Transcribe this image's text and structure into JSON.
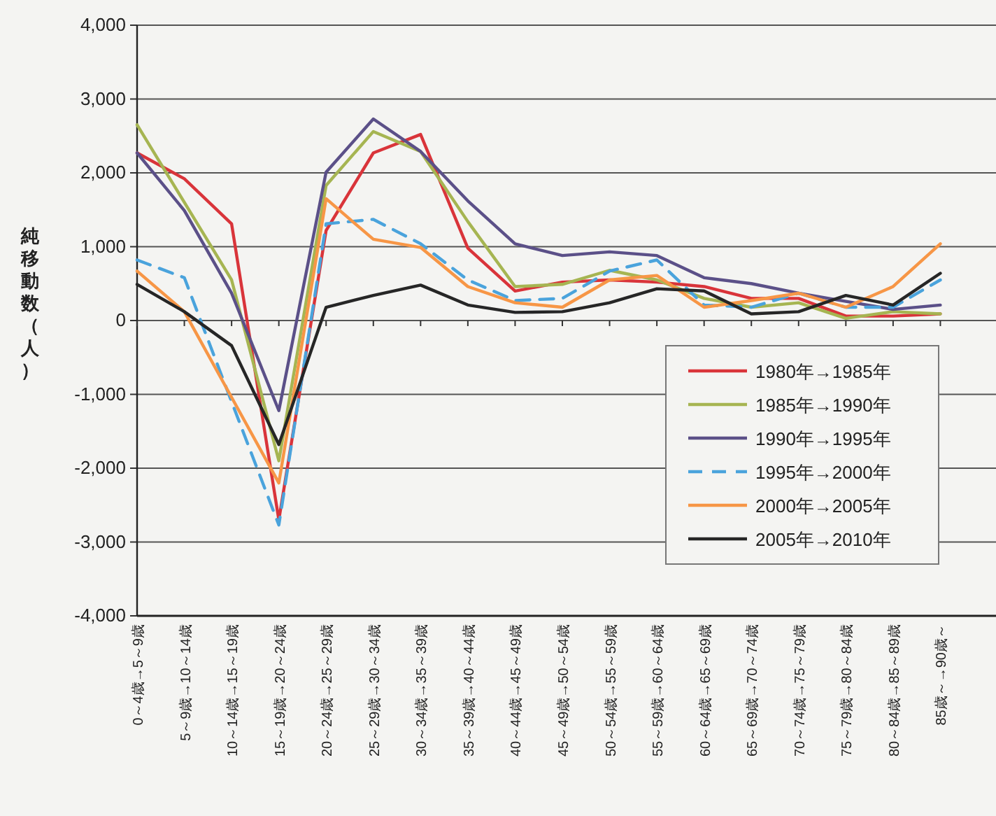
{
  "chart_data": {
    "type": "line",
    "ylabel": "純移動数（人）",
    "categories": [
      "0～4歳→5～9歳",
      "5～9歳→10～14歳",
      "10～14歳→15～19歳",
      "15～19歳→20～24歳",
      "20～24歳→25～29歳",
      "25～29歳→30～34歳",
      "30～34歳→35～39歳",
      "35～39歳→40～44歳",
      "40～44歳→45～49歳",
      "45～49歳→50～54歳",
      "50～54歳→55～59歳",
      "55～59歳→60～64歳",
      "60～64歳→65～69歳",
      "65～69歳→70～74歳",
      "70～74歳→75～79歳",
      "75～79歳→80～84歳",
      "80～84歳→85～89歳",
      "85歳～→90歳～"
    ],
    "series": [
      {
        "name": "1980年→1985年",
        "color": "#d9343a",
        "line_style": "solid",
        "values": [
          2270,
          1920,
          1310,
          -2700,
          1220,
          2270,
          2520,
          980,
          400,
          520,
          550,
          520,
          460,
          300,
          300,
          60,
          60,
          90
        ]
      },
      {
        "name": "1985年→1990年",
        "color": "#a6b552",
        "line_style": "solid",
        "values": [
          2650,
          1600,
          550,
          -1900,
          1830,
          2560,
          2290,
          1340,
          460,
          490,
          680,
          550,
          300,
          180,
          240,
          30,
          120,
          90
        ]
      },
      {
        "name": "1990年→1995年",
        "color": "#5b5088",
        "line_style": "solid",
        "values": [
          2270,
          1490,
          370,
          -1220,
          2010,
          2730,
          2290,
          1620,
          1040,
          880,
          930,
          880,
          580,
          500,
          370,
          260,
          150,
          210
        ]
      },
      {
        "name": "1995年→2000年",
        "color": "#4aa3dc",
        "line_style": "dashed",
        "values": [
          820,
          580,
          -1100,
          -2770,
          1310,
          1370,
          1040,
          550,
          270,
          300,
          670,
          820,
          210,
          180,
          370,
          180,
          180,
          550
        ]
      },
      {
        "name": "2000年→2005年",
        "color": "#f79646",
        "line_style": "solid",
        "values": [
          670,
          120,
          -1040,
          -2200,
          1650,
          1100,
          990,
          460,
          240,
          180,
          550,
          610,
          180,
          270,
          370,
          180,
          460,
          1040
        ]
      },
      {
        "name": "2005年→2010年",
        "color": "#262626",
        "line_style": "solid",
        "values": [
          490,
          120,
          -340,
          -1680,
          180,
          340,
          480,
          210,
          110,
          120,
          240,
          430,
          400,
          90,
          120,
          340,
          210,
          640
        ]
      }
    ],
    "ylim": [
      -4000,
      4000
    ],
    "yticks": [
      {
        "value": -4000,
        "label": "-4,000"
      },
      {
        "value": -3000,
        "label": "-3,000"
      },
      {
        "value": -2000,
        "label": "-2,000"
      },
      {
        "value": -1000,
        "label": "-1,000"
      },
      0,
      {
        "value": 1000,
        "label": "1,000"
      },
      {
        "value": 2000,
        "label": "2,000"
      },
      {
        "value": 3000,
        "label": "3,000"
      },
      {
        "value": 4000,
        "label": "4,000"
      }
    ],
    "grid": "y",
    "legend": "right"
  }
}
